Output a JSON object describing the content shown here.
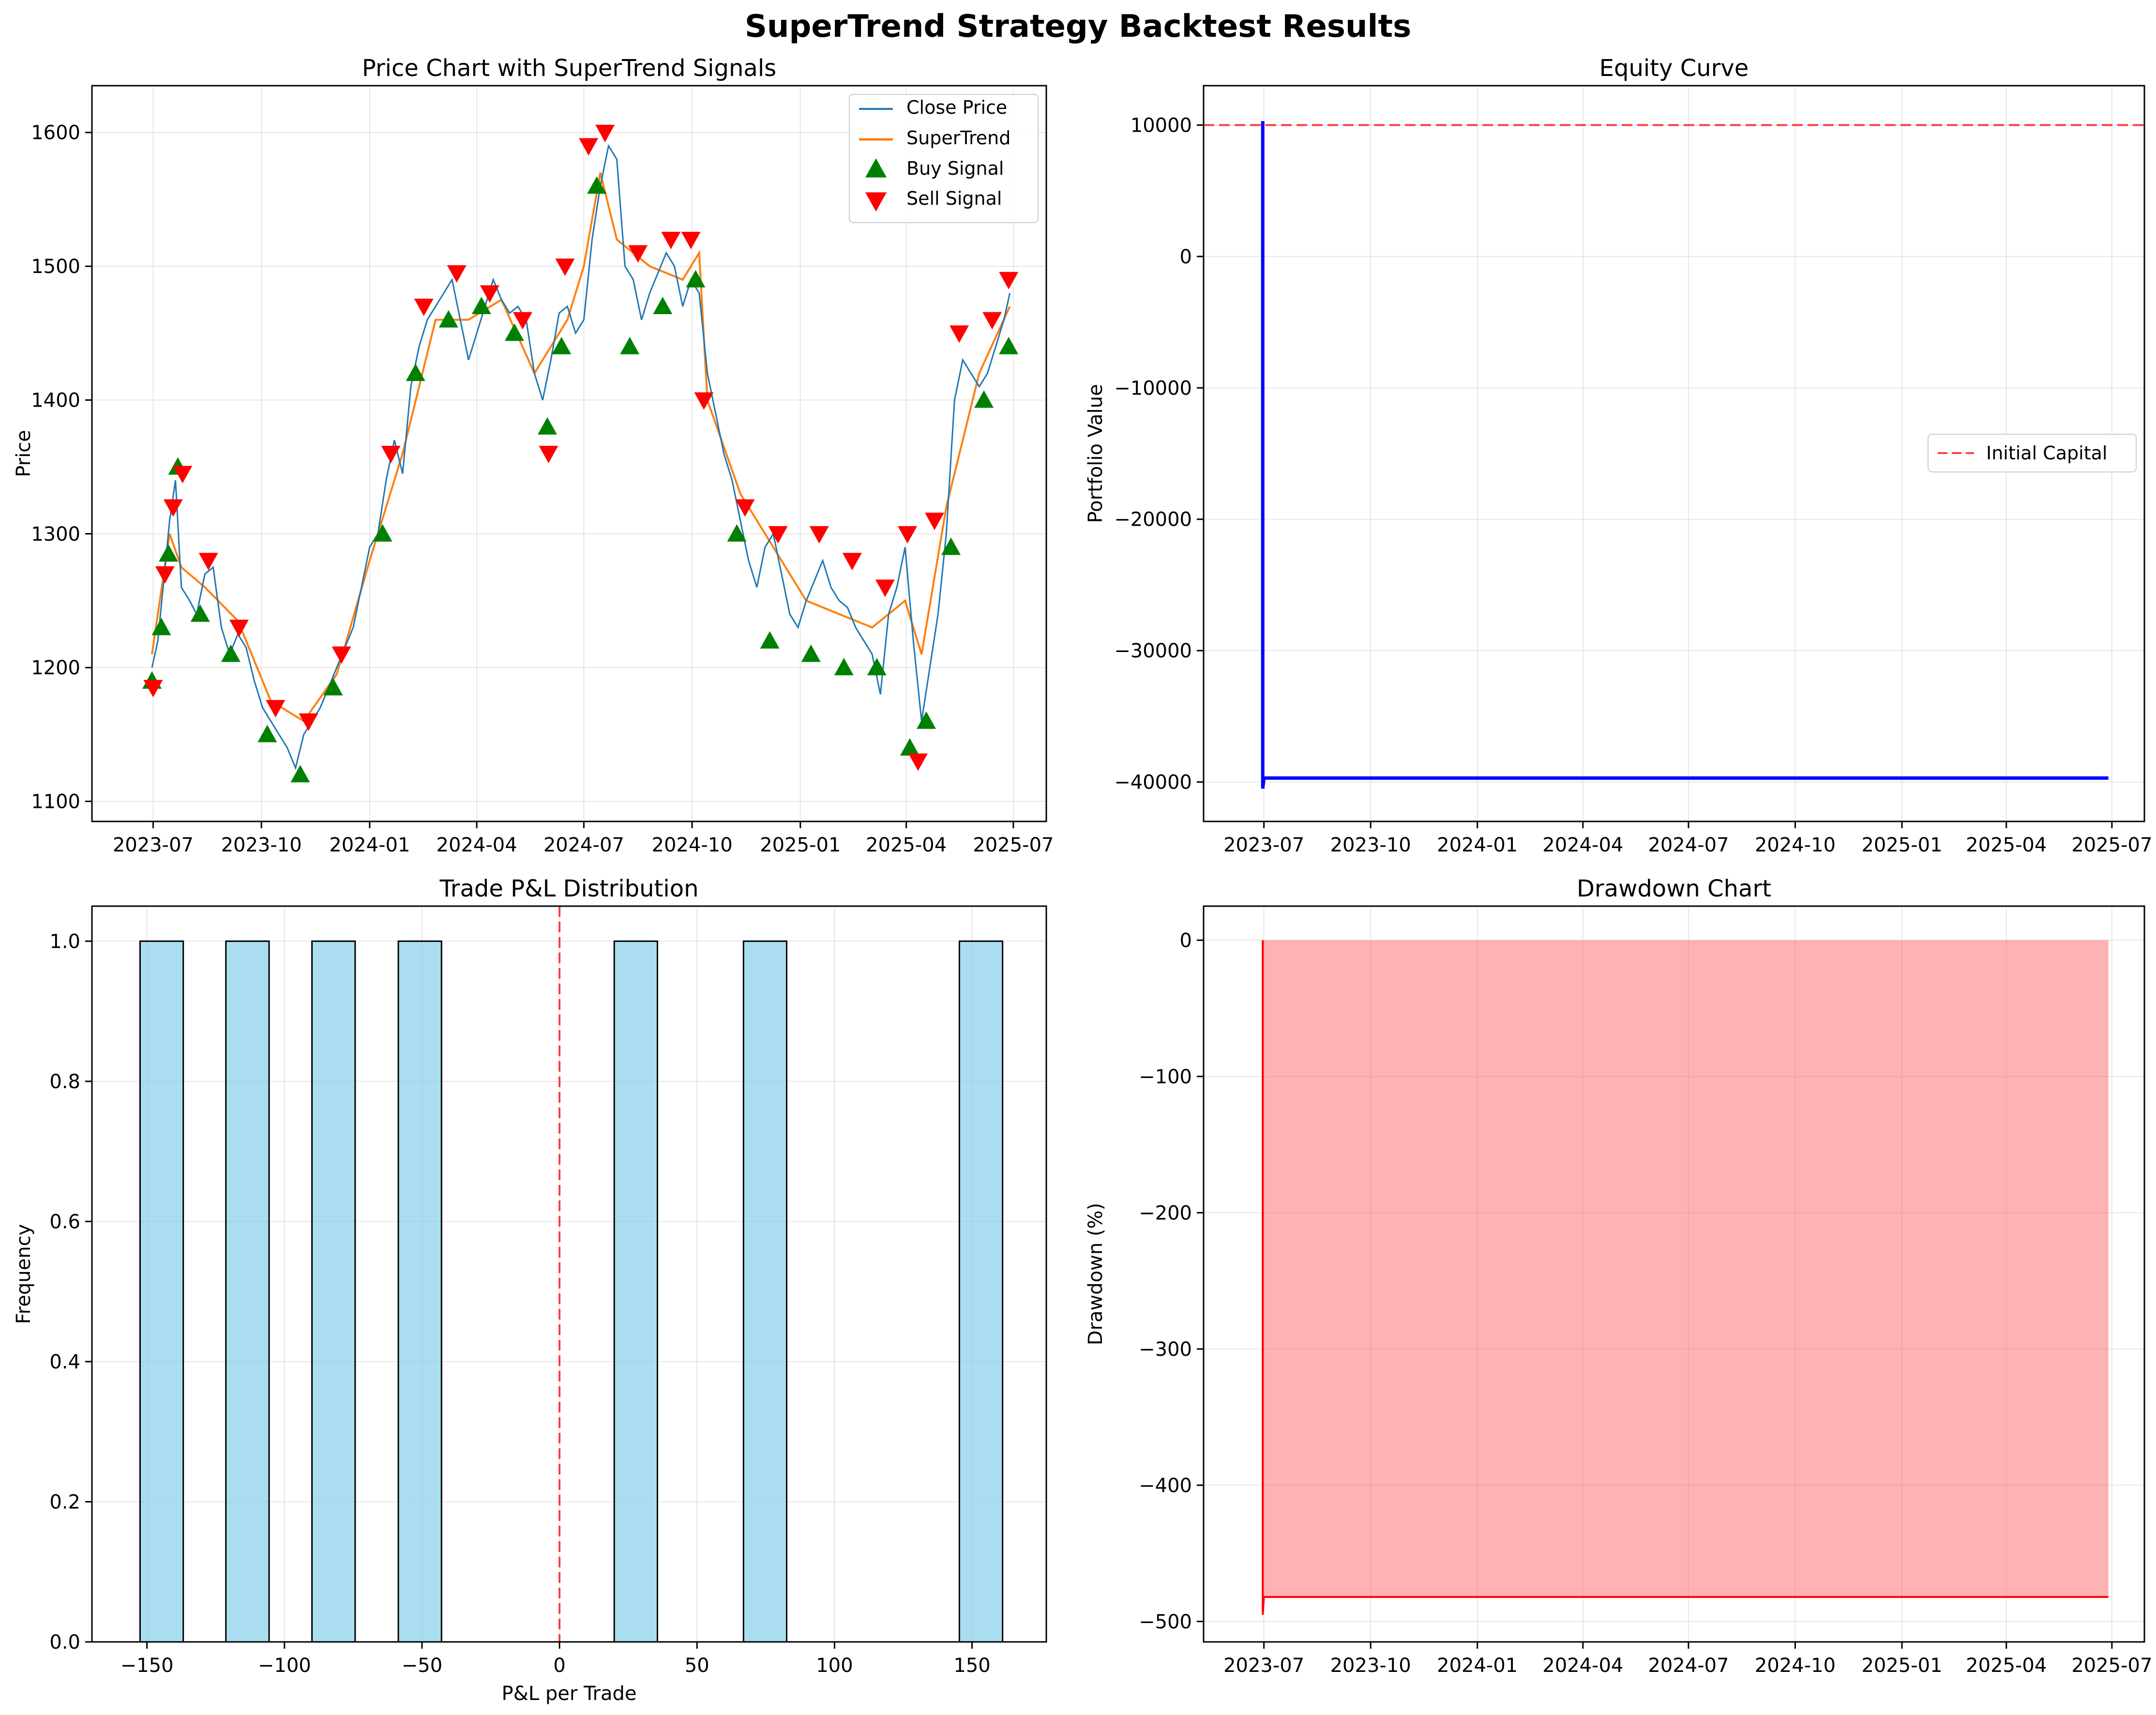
{
  "title": "SuperTrend Strategy Backtest Results",
  "colors": {
    "close_price": "#1f77b4",
    "supertrend": "#ff7f0e",
    "buy": "#008000",
    "sell": "#ff0000",
    "equity": "#0000ff",
    "initial_capital": "#ff0000",
    "hist_fill": "#87ceeb",
    "drawdown_fill": "#ff6666",
    "drawdown_line": "#ff0000"
  },
  "chart_data": [
    {
      "id": "price",
      "type": "line",
      "title": "Price Chart with SuperTrend Signals",
      "xlabel": "",
      "ylabel": "Price",
      "xlim": [
        "2023-05-10",
        "2025-07-29"
      ],
      "ylim": [
        1085,
        1635
      ],
      "x_ticks": [
        "2023-07",
        "2023-10",
        "2024-01",
        "2024-04",
        "2024-07",
        "2024-10",
        "2025-01",
        "2025-04",
        "2025-07"
      ],
      "y_ticks": [
        1100,
        1200,
        1300,
        1400,
        1500,
        1600
      ],
      "grid": true,
      "legend": {
        "placement": "upper right",
        "entries": [
          "Close Price",
          "SuperTrend",
          "Buy Signal",
          "Sell Signal"
        ]
      },
      "series": [
        {
          "name": "Close Price",
          "x": [
            "2023-06-30",
            "2023-07-05",
            "2023-07-10",
            "2023-07-15",
            "2023-07-20",
            "2023-07-25",
            "2023-08-01",
            "2023-08-07",
            "2023-08-14",
            "2023-08-21",
            "2023-08-28",
            "2023-09-04",
            "2023-09-11",
            "2023-09-18",
            "2023-09-25",
            "2023-10-02",
            "2023-10-09",
            "2023-10-16",
            "2023-10-23",
            "2023-10-30",
            "2023-11-06",
            "2023-11-13",
            "2023-11-20",
            "2023-11-27",
            "2023-12-04",
            "2023-12-11",
            "2023-12-18",
            "2023-12-25",
            "2024-01-01",
            "2024-01-08",
            "2024-01-15",
            "2024-01-22",
            "2024-01-29",
            "2024-02-05",
            "2024-02-12",
            "2024-02-19",
            "2024-02-26",
            "2024-03-04",
            "2024-03-11",
            "2024-03-18",
            "2024-03-25",
            "2024-04-01",
            "2024-04-08",
            "2024-04-15",
            "2024-04-22",
            "2024-04-29",
            "2024-05-06",
            "2024-05-13",
            "2024-05-20",
            "2024-05-27",
            "2024-06-03",
            "2024-06-10",
            "2024-06-17",
            "2024-06-24",
            "2024-07-01",
            "2024-07-08",
            "2024-07-15",
            "2024-07-22",
            "2024-07-29",
            "2024-08-05",
            "2024-08-12",
            "2024-08-19",
            "2024-08-26",
            "2024-09-02",
            "2024-09-09",
            "2024-09-16",
            "2024-09-23",
            "2024-09-30",
            "2024-10-07",
            "2024-10-14",
            "2024-10-21",
            "2024-10-28",
            "2024-11-04",
            "2024-11-11",
            "2024-11-18",
            "2024-11-25",
            "2024-12-02",
            "2024-12-09",
            "2024-12-16",
            "2024-12-23",
            "2024-12-30",
            "2025-01-06",
            "2025-01-13",
            "2025-01-20",
            "2025-01-27",
            "2025-02-03",
            "2025-02-10",
            "2025-02-17",
            "2025-02-24",
            "2025-03-03",
            "2025-03-10",
            "2025-03-17",
            "2025-03-24",
            "2025-03-31",
            "2025-04-07",
            "2025-04-14",
            "2025-04-21",
            "2025-04-28",
            "2025-05-05",
            "2025-05-12",
            "2025-05-19",
            "2025-05-26",
            "2025-06-02",
            "2025-06-09",
            "2025-06-16",
            "2025-06-23",
            "2025-06-28"
          ],
          "y": [
            1200,
            1220,
            1265,
            1310,
            1340,
            1260,
            1250,
            1240,
            1270,
            1275,
            1230,
            1210,
            1225,
            1215,
            1190,
            1170,
            1160,
            1150,
            1140,
            1125,
            1150,
            1160,
            1170,
            1185,
            1200,
            1215,
            1230,
            1260,
            1290,
            1300,
            1340,
            1370,
            1345,
            1410,
            1440,
            1460,
            1470,
            1480,
            1490,
            1460,
            1430,
            1450,
            1470,
            1490,
            1475,
            1465,
            1470,
            1460,
            1420,
            1400,
            1430,
            1465,
            1470,
            1450,
            1460,
            1520,
            1560,
            1590,
            1580,
            1500,
            1490,
            1460,
            1480,
            1495,
            1510,
            1500,
            1470,
            1490,
            1480,
            1420,
            1390,
            1360,
            1340,
            1310,
            1280,
            1260,
            1290,
            1300,
            1270,
            1240,
            1230,
            1250,
            1265,
            1280,
            1260,
            1250,
            1245,
            1230,
            1220,
            1210,
            1180,
            1240,
            1260,
            1290,
            1220,
            1160,
            1200,
            1240,
            1300,
            1400,
            1430,
            1420,
            1410,
            1420,
            1440,
            1460,
            1480
          ]
        },
        {
          "name": "SuperTrend",
          "x": [
            "2023-06-30",
            "2023-07-15",
            "2023-07-25",
            "2023-08-14",
            "2023-09-11",
            "2023-10-09",
            "2023-11-06",
            "2023-12-04",
            "2024-01-01",
            "2024-01-29",
            "2024-02-26",
            "2024-03-25",
            "2024-04-22",
            "2024-05-20",
            "2024-06-17",
            "2024-07-01",
            "2024-07-15",
            "2024-07-29",
            "2024-08-26",
            "2024-09-23",
            "2024-10-07",
            "2024-10-14",
            "2024-11-11",
            "2024-12-09",
            "2025-01-06",
            "2025-02-03",
            "2025-03-03",
            "2025-03-31",
            "2025-04-14",
            "2025-05-05",
            "2025-06-02",
            "2025-06-28"
          ],
          "y": [
            1210,
            1300,
            1275,
            1260,
            1235,
            1175,
            1160,
            1195,
            1280,
            1360,
            1460,
            1460,
            1475,
            1420,
            1460,
            1500,
            1570,
            1520,
            1500,
            1490,
            1510,
            1400,
            1330,
            1290,
            1250,
            1240,
            1230,
            1250,
            1210,
            1320,
            1420,
            1470
          ]
        }
      ],
      "markers": [
        {
          "name": "Buy Signal",
          "symbol": "triangle-up",
          "x": [
            "2023-06-30",
            "2023-07-08",
            "2023-07-14",
            "2023-07-22",
            "2023-08-10",
            "2023-09-05",
            "2023-10-06",
            "2023-11-03",
            "2023-12-01",
            "2024-01-12",
            "2024-02-09",
            "2024-03-08",
            "2024-04-05",
            "2024-05-03",
            "2024-05-31",
            "2024-06-12",
            "2024-07-12",
            "2024-08-09",
            "2024-09-06",
            "2024-10-04",
            "2024-11-08",
            "2024-12-06",
            "2025-01-10",
            "2025-02-07",
            "2025-03-07",
            "2025-04-04",
            "2025-04-18",
            "2025-05-09",
            "2025-06-06",
            "2025-06-27"
          ],
          "y": [
            1190,
            1230,
            1285,
            1350,
            1240,
            1210,
            1150,
            1120,
            1185,
            1300,
            1420,
            1460,
            1470,
            1450,
            1380,
            1440,
            1560,
            1440,
            1470,
            1490,
            1300,
            1220,
            1210,
            1200,
            1200,
            1140,
            1160,
            1290,
            1400,
            1440
          ]
        },
        {
          "name": "Sell Signal",
          "symbol": "triangle-down",
          "x": [
            "2023-07-01",
            "2023-07-11",
            "2023-07-18",
            "2023-07-26",
            "2023-08-17",
            "2023-09-12",
            "2023-10-13",
            "2023-11-10",
            "2023-12-08",
            "2024-01-19",
            "2024-02-16",
            "2024-03-15",
            "2024-04-12",
            "2024-05-10",
            "2024-06-01",
            "2024-06-15",
            "2024-07-05",
            "2024-07-19",
            "2024-08-16",
            "2024-09-13",
            "2024-09-30",
            "2024-10-11",
            "2024-11-15",
            "2024-12-13",
            "2025-01-17",
            "2025-02-14",
            "2025-03-14",
            "2025-04-02",
            "2025-04-11",
            "2025-04-25",
            "2025-05-16",
            "2025-06-13",
            "2025-06-27"
          ],
          "y": [
            1185,
            1270,
            1320,
            1345,
            1280,
            1230,
            1170,
            1160,
            1210,
            1360,
            1470,
            1495,
            1480,
            1460,
            1360,
            1500,
            1590,
            1600,
            1510,
            1520,
            1520,
            1400,
            1320,
            1300,
            1300,
            1280,
            1260,
            1300,
            1130,
            1310,
            1450,
            1460,
            1490
          ]
        }
      ]
    },
    {
      "id": "equity",
      "type": "line",
      "title": "Equity Curve",
      "xlabel": "",
      "ylabel": "Portfolio Value",
      "xlim": [
        "2023-05-10",
        "2025-07-29"
      ],
      "ylim": [
        -43000,
        13000
      ],
      "x_ticks": [
        "2023-07",
        "2023-10",
        "2024-01",
        "2024-04",
        "2024-07",
        "2024-10",
        "2025-01",
        "2025-04",
        "2025-07"
      ],
      "y_ticks": [
        10000,
        0,
        -10000,
        -20000,
        -30000,
        -40000
      ],
      "y_tick_labels": [
        "10000",
        "0",
        "−10000",
        "−20000",
        "−30000",
        "−40000"
      ],
      "grid": true,
      "legend": {
        "placement": "center right",
        "entries": [
          "Initial Capital"
        ]
      },
      "hline": {
        "name": "Initial Capital",
        "y": 10000
      },
      "series": [
        {
          "name": "",
          "x": [
            "2023-06-30",
            "2023-06-30",
            "2023-06-30",
            "2023-07-01",
            "2025-06-28"
          ],
          "y": [
            10000,
            10300,
            -40500,
            -39700,
            -39700
          ]
        }
      ]
    },
    {
      "id": "pnl",
      "type": "bar",
      "title": "Trade P&L Distribution",
      "xlabel": "P&L per Trade",
      "ylabel": "Frequency",
      "xlim": [
        -170,
        177
      ],
      "ylim": [
        0,
        1.05
      ],
      "x_ticks": [
        -150,
        -100,
        -50,
        0,
        50,
        100,
        150
      ],
      "x_tick_labels": [
        "−150",
        "−100",
        "−50",
        "0",
        "50",
        "100",
        "150"
      ],
      "y_ticks": [
        0.0,
        0.2,
        0.4,
        0.6,
        0.8,
        1.0
      ],
      "y_tick_labels": [
        "0.0",
        "0.2",
        "0.4",
        "0.6",
        "0.8",
        "1.0"
      ],
      "grid": true,
      "vline": {
        "x": 0
      },
      "bins": [
        {
          "x0": -152.5,
          "x1": -136.8,
          "count": 1
        },
        {
          "x0": -121.3,
          "x1": -105.6,
          "count": 1
        },
        {
          "x0": -90.0,
          "x1": -74.3,
          "count": 1
        },
        {
          "x0": -58.6,
          "x1": -42.9,
          "count": 1
        },
        {
          "x0": 19.9,
          "x1": 35.6,
          "count": 1
        },
        {
          "x0": 66.9,
          "x1": 82.6,
          "count": 1
        },
        {
          "x0": 145.4,
          "x1": 161.1,
          "count": 1
        }
      ]
    },
    {
      "id": "drawdown",
      "type": "area",
      "title": "Drawdown Chart",
      "xlabel": "",
      "ylabel": "Drawdown (%)",
      "xlim": [
        "2023-05-10",
        "2025-07-29"
      ],
      "ylim": [
        -515,
        25
      ],
      "x_ticks": [
        "2023-07",
        "2023-10",
        "2024-01",
        "2024-04",
        "2024-07",
        "2024-10",
        "2025-01",
        "2025-04",
        "2025-07"
      ],
      "y_ticks": [
        0,
        -100,
        -200,
        -300,
        -400,
        -500
      ],
      "y_tick_labels": [
        "0",
        "−100",
        "−200",
        "−300",
        "−400",
        "−500"
      ],
      "grid": true,
      "series": [
        {
          "name": "",
          "x": [
            "2023-06-30",
            "2023-06-30",
            "2023-07-01",
            "2025-06-28"
          ],
          "y": [
            0,
            -495,
            -482,
            -482
          ]
        }
      ]
    }
  ]
}
